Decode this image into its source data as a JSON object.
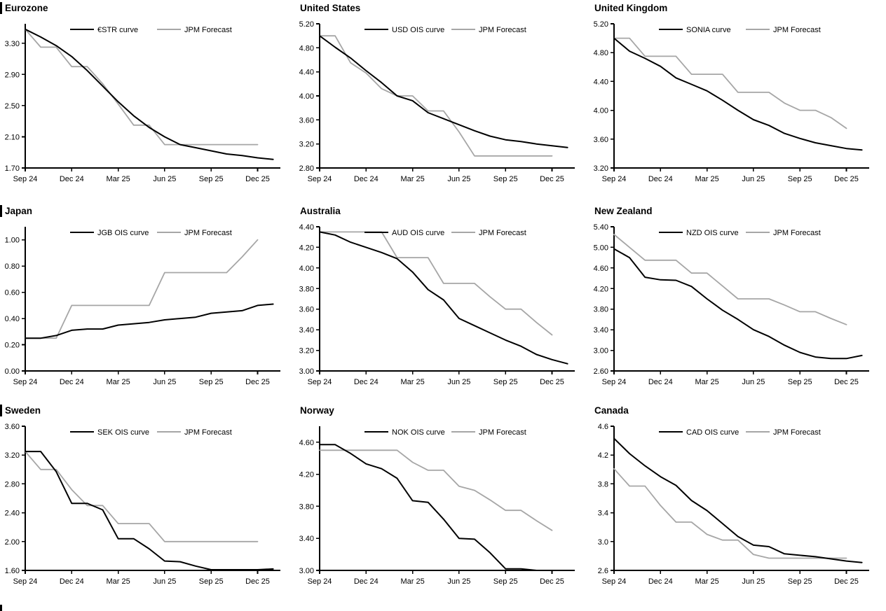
{
  "page": {
    "background": "#ffffff"
  },
  "colors": {
    "curve": "#000000",
    "forecast": "#a6a6a6",
    "axis": "#000000",
    "text": "#000000"
  },
  "x_axis": {
    "tick_labels": [
      "Sep 24",
      "Dec 24",
      "Mar 25",
      "Jun 25",
      "Sep 25",
      "Dec 25"
    ],
    "tick_months": [
      0,
      3,
      6,
      9,
      12,
      15
    ]
  },
  "chart_data": [
    {
      "title": "Eurozone",
      "type": "line",
      "grid": false,
      "legend_position": "top-center",
      "ylim": [
        1.7,
        3.55
      ],
      "yticks": [
        3.3,
        2.9,
        2.5,
        2.1,
        1.7
      ],
      "y_decimals": 2,
      "series": [
        {
          "name": "€STR curve",
          "role": "curve",
          "values": [
            3.48,
            3.38,
            3.27,
            3.13,
            2.95,
            2.75,
            2.55,
            2.37,
            2.22,
            2.1,
            2.0,
            1.96,
            1.92,
            1.88,
            1.86,
            1.83,
            1.81
          ]
        },
        {
          "name": "JPM Forecast",
          "role": "forecast",
          "values": [
            3.48,
            3.25,
            3.25,
            3.0,
            3.0,
            2.78,
            2.52,
            2.25,
            2.25,
            2.0,
            2.0,
            2.0,
            2.0,
            2.0,
            2.0,
            2.0
          ]
        }
      ]
    },
    {
      "title": "United States",
      "type": "line",
      "grid": false,
      "legend_position": "top-center",
      "ylim": [
        2.8,
        5.2
      ],
      "yticks": [
        5.2,
        4.8,
        4.4,
        4.0,
        3.6,
        3.2,
        2.8
      ],
      "y_decimals": 2,
      "series": [
        {
          "name": "USD OIS curve",
          "role": "curve",
          "values": [
            5.0,
            4.81,
            4.63,
            4.42,
            4.22,
            4.0,
            3.92,
            3.72,
            3.62,
            3.52,
            3.42,
            3.33,
            3.27,
            3.24,
            3.2,
            3.17,
            3.14
          ]
        },
        {
          "name": "JPM Forecast",
          "role": "forecast",
          "values": [
            5.0,
            5.0,
            4.55,
            4.38,
            4.12,
            4.0,
            4.0,
            3.75,
            3.75,
            3.4,
            3.0,
            3.0,
            3.0,
            3.0,
            3.0,
            3.0
          ]
        }
      ]
    },
    {
      "title": "United Kingdom",
      "type": "line",
      "grid": false,
      "legend_position": "top-center",
      "ylim": [
        3.2,
        5.2
      ],
      "yticks": [
        5.2,
        4.8,
        4.4,
        4.0,
        3.6,
        3.2
      ],
      "y_decimals": 2,
      "series": [
        {
          "name": "SONIA curve",
          "role": "curve",
          "values": [
            5.0,
            4.82,
            4.72,
            4.61,
            4.45,
            4.36,
            4.27,
            4.14,
            4.0,
            3.87,
            3.79,
            3.68,
            3.61,
            3.55,
            3.51,
            3.47,
            3.45
          ]
        },
        {
          "name": "JPM Forecast",
          "role": "forecast",
          "values": [
            5.0,
            5.0,
            4.75,
            4.75,
            4.75,
            4.5,
            4.5,
            4.5,
            4.25,
            4.25,
            4.25,
            4.1,
            4.0,
            4.0,
            3.9,
            3.75
          ]
        }
      ]
    },
    {
      "title": "Japan",
      "type": "line",
      "grid": false,
      "legend_position": "top-center",
      "ylim": [
        0.0,
        1.1
      ],
      "yticks": [
        1.0,
        0.8,
        0.6,
        0.4,
        0.2,
        0.0
      ],
      "y_decimals": 2,
      "series": [
        {
          "name": "JGB OIS curve",
          "role": "curve",
          "values": [
            0.25,
            0.25,
            0.27,
            0.31,
            0.32,
            0.32,
            0.35,
            0.36,
            0.37,
            0.39,
            0.4,
            0.41,
            0.44,
            0.45,
            0.46,
            0.5,
            0.51
          ]
        },
        {
          "name": "JPM Forecast",
          "role": "forecast",
          "values": [
            0.25,
            0.25,
            0.25,
            0.5,
            0.5,
            0.5,
            0.5,
            0.5,
            0.5,
            0.75,
            0.75,
            0.75,
            0.75,
            0.75,
            0.87,
            1.0
          ]
        }
      ]
    },
    {
      "title": "Australia",
      "type": "line",
      "grid": false,
      "legend_position": "top-center",
      "ylim": [
        3.0,
        4.4
      ],
      "yticks": [
        4.4,
        4.2,
        4.0,
        3.8,
        3.6,
        3.4,
        3.2,
        3.0
      ],
      "y_decimals": 2,
      "series": [
        {
          "name": "AUD OIS curve",
          "role": "curve",
          "values": [
            4.35,
            4.32,
            4.25,
            4.2,
            4.15,
            4.09,
            3.96,
            3.79,
            3.69,
            3.51,
            3.44,
            3.37,
            3.3,
            3.24,
            3.16,
            3.11,
            3.07
          ]
        },
        {
          "name": "JPM Forecast",
          "role": "forecast",
          "values": [
            4.35,
            4.35,
            4.35,
            4.35,
            4.35,
            4.1,
            4.1,
            4.1,
            3.85,
            3.85,
            3.85,
            3.72,
            3.6,
            3.6,
            3.47,
            3.35
          ]
        }
      ]
    },
    {
      "title": "New Zealand",
      "type": "line",
      "grid": false,
      "legend_position": "top-center",
      "ylim": [
        2.6,
        5.4
      ],
      "yticks": [
        5.4,
        5.0,
        4.6,
        4.2,
        3.8,
        3.4,
        3.0,
        2.6
      ],
      "y_decimals": 2,
      "series": [
        {
          "name": "NZD OIS curve",
          "role": "curve",
          "values": [
            4.97,
            4.8,
            4.42,
            4.37,
            4.36,
            4.24,
            4.0,
            3.78,
            3.6,
            3.4,
            3.27,
            3.1,
            2.96,
            2.87,
            2.84,
            2.84,
            2.9
          ]
        },
        {
          "name": "JPM Forecast",
          "role": "forecast",
          "values": [
            5.25,
            5.0,
            4.75,
            4.75,
            4.75,
            4.5,
            4.5,
            4.25,
            4.0,
            4.0,
            4.0,
            3.88,
            3.75,
            3.75,
            3.62,
            3.5
          ]
        }
      ]
    },
    {
      "title": "Sweden",
      "type": "line",
      "grid": false,
      "legend_position": "top-center",
      "ylim": [
        1.6,
        3.6
      ],
      "yticks": [
        3.6,
        3.2,
        2.8,
        2.4,
        2.0,
        1.6
      ],
      "y_decimals": 2,
      "series": [
        {
          "name": "SEK OIS curve",
          "role": "curve",
          "values": [
            3.25,
            3.25,
            2.97,
            2.53,
            2.53,
            2.44,
            2.04,
            2.04,
            1.9,
            1.73,
            1.72,
            1.66,
            1.61,
            1.61,
            1.61,
            1.61,
            1.62
          ]
        },
        {
          "name": "JPM Forecast",
          "role": "forecast",
          "values": [
            3.25,
            3.0,
            3.0,
            2.72,
            2.5,
            2.5,
            2.25,
            2.25,
            2.25,
            2.0,
            2.0,
            2.0,
            2.0,
            2.0,
            2.0,
            2.0
          ]
        }
      ]
    },
    {
      "title": "Norway",
      "type": "line",
      "grid": false,
      "legend_position": "top-center",
      "ylim": [
        3.0,
        4.8
      ],
      "yticks": [
        4.6,
        4.2,
        3.8,
        3.4,
        3.0
      ],
      "y_decimals": 2,
      "series": [
        {
          "name": "NOK OIS curve",
          "role": "curve",
          "values": [
            4.57,
            4.57,
            4.46,
            4.33,
            4.27,
            4.15,
            3.87,
            3.85,
            3.64,
            3.4,
            3.39,
            3.22,
            3.02,
            3.02,
            3.0,
            3.0,
            3.0
          ]
        },
        {
          "name": "JPM Forecast",
          "role": "forecast",
          "values": [
            4.5,
            4.5,
            4.5,
            4.5,
            4.5,
            4.5,
            4.35,
            4.25,
            4.25,
            4.05,
            4.0,
            3.88,
            3.75,
            3.75,
            3.62,
            3.5
          ]
        }
      ]
    },
    {
      "title": "Canada",
      "type": "line",
      "grid": false,
      "legend_position": "top-center",
      "ylim": [
        2.6,
        4.6
      ],
      "yticks": [
        4.6,
        4.2,
        3.8,
        3.4,
        3.0,
        2.6
      ],
      "y_decimals": 1,
      "series": [
        {
          "name": "CAD OIS curve",
          "role": "curve",
          "values": [
            4.43,
            4.22,
            4.05,
            3.9,
            3.78,
            3.57,
            3.43,
            3.25,
            3.07,
            2.95,
            2.93,
            2.83,
            2.81,
            2.79,
            2.76,
            2.73,
            2.71
          ]
        },
        {
          "name": "JPM Forecast",
          "role": "forecast",
          "values": [
            4.01,
            3.77,
            3.77,
            3.5,
            3.27,
            3.27,
            3.1,
            3.02,
            3.02,
            2.82,
            2.77,
            2.77,
            2.77,
            2.77,
            2.77,
            2.77
          ]
        }
      ]
    }
  ]
}
